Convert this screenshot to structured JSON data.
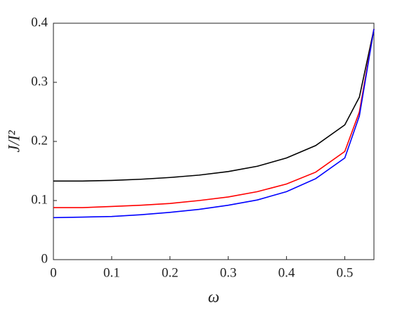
{
  "chart_data": {
    "type": "line",
    "x_label": "ω",
    "y_label": "J/I²",
    "x": [
      0,
      0.05,
      0.1,
      0.15,
      0.2,
      0.25,
      0.3,
      0.35,
      0.4,
      0.45,
      0.5,
      0.525,
      0.55
    ],
    "series": [
      {
        "color": "#000000",
        "values": [
          0.133,
          0.133,
          0.134,
          0.136,
          0.139,
          0.143,
          0.149,
          0.158,
          0.172,
          0.193,
          0.228,
          0.275,
          0.39
        ]
      },
      {
        "color": "#ff0000",
        "values": [
          0.088,
          0.088,
          0.09,
          0.092,
          0.095,
          0.1,
          0.106,
          0.115,
          0.128,
          0.148,
          0.183,
          0.25,
          0.39
        ]
      },
      {
        "color": "#0000ff",
        "values": [
          0.071,
          0.072,
          0.073,
          0.076,
          0.08,
          0.085,
          0.092,
          0.101,
          0.115,
          0.137,
          0.172,
          0.243,
          0.39
        ]
      }
    ],
    "xlim": [
      0,
      0.55
    ],
    "xticks": [
      0,
      0.1,
      0.2,
      0.3,
      0.4,
      0.5
    ],
    "ylim": [
      0,
      0.4
    ],
    "yticks": [
      0,
      0.1,
      0.2,
      0.3,
      0.4
    ],
    "grid": false
  }
}
